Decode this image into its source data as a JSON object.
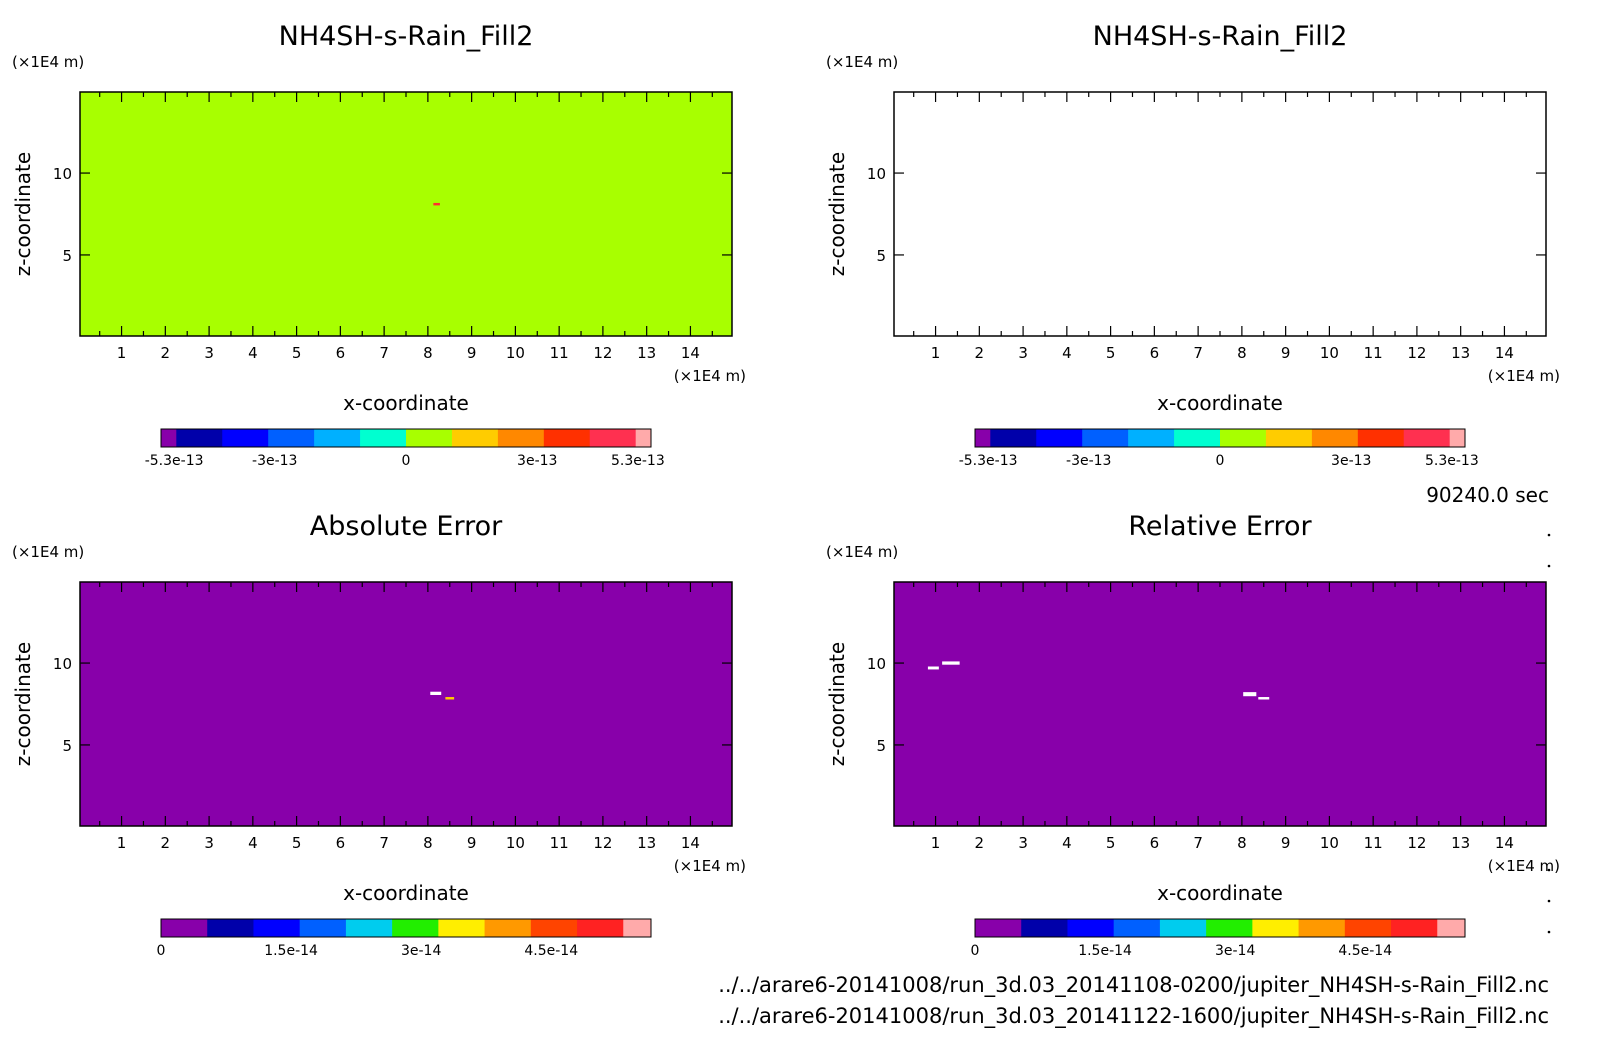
{
  "window": {
    "time_label": "90240.0 sec"
  },
  "files": [
    "../../arare6-20141008/run_3d.03_20141108-0200/jupiter_NH4SH-s-Rain_Fill2.nc",
    "../../arare6-20141008/run_3d.03_20141122-1600/jupiter_NH4SH-s-Rain_Fill2.nc"
  ],
  "chart_data": [
    {
      "type": "heatmap",
      "title": "NH4SH-s-Rain_Fill2",
      "xlabel": "x-coordinate",
      "ylabel": "z-coordinate",
      "x_unit": "(×1E4 m)",
      "y_unit": "(×1E4 m)",
      "xlim": [
        0.05,
        14.95
      ],
      "ylim": [
        0.05,
        14.95
      ],
      "x_ticks": [
        1,
        2,
        3,
        4,
        5,
        6,
        7,
        8,
        9,
        10,
        11,
        12,
        13,
        14
      ],
      "y_ticks": [
        5,
        10
      ],
      "field_color": "#a8ff00",
      "features": [
        {
          "x": 8.2,
          "z": 8.1,
          "w": 0.15,
          "h": 0.15,
          "color": "#ff3030"
        }
      ],
      "colorbar": {
        "colors": [
          "#8800aa",
          "#0000aa",
          "#0000ff",
          "#0060ff",
          "#00b0ff",
          "#00ffd0",
          "#a8ff00",
          "#ffcc00",
          "#ff8800",
          "#ff3000",
          "#ff3050",
          "#ffaaaa"
        ],
        "widths": [
          1,
          3,
          3,
          3,
          3,
          3,
          3,
          3,
          3,
          3,
          3,
          1
        ],
        "range": [
          -5.6e-13,
          5.6e-13
        ],
        "tick_values": [
          -5.3e-13,
          -3e-13,
          0,
          3e-13,
          5.3e-13
        ],
        "tick_labels": [
          "-5.3e-13",
          "-3e-13",
          "0",
          "3e-13",
          "5.3e-13"
        ]
      }
    },
    {
      "type": "heatmap",
      "title": "NH4SH-s-Rain_Fill2",
      "xlabel": "x-coordinate",
      "ylabel": "z-coordinate",
      "x_unit": "(×1E4 m)",
      "y_unit": "(×1E4 m)",
      "xlim": [
        0.05,
        14.95
      ],
      "ylim": [
        0.05,
        14.95
      ],
      "x_ticks": [
        1,
        2,
        3,
        4,
        5,
        6,
        7,
        8,
        9,
        10,
        11,
        12,
        13,
        14
      ],
      "y_ticks": [
        5,
        10
      ],
      "field_color": "#ffffff",
      "features": [],
      "colorbar": {
        "colors": [
          "#8800aa",
          "#0000aa",
          "#0000ff",
          "#0060ff",
          "#00b0ff",
          "#00ffd0",
          "#a8ff00",
          "#ffcc00",
          "#ff8800",
          "#ff3000",
          "#ff3050",
          "#ffaaaa"
        ],
        "widths": [
          1,
          3,
          3,
          3,
          3,
          3,
          3,
          3,
          3,
          3,
          3,
          1
        ],
        "range": [
          -5.6e-13,
          5.6e-13
        ],
        "tick_values": [
          -5.3e-13,
          -3e-13,
          0,
          3e-13,
          5.3e-13
        ],
        "tick_labels": [
          "-5.3e-13",
          "-3e-13",
          "0",
          "3e-13",
          "5.3e-13"
        ]
      }
    },
    {
      "type": "heatmap",
      "title": "Absolute Error",
      "xlabel": "x-coordinate",
      "ylabel": "z-coordinate",
      "x_unit": "(×1E4 m)",
      "y_unit": "(×1E4 m)",
      "xlim": [
        0.05,
        14.95
      ],
      "ylim": [
        0.05,
        14.95
      ],
      "x_ticks": [
        1,
        2,
        3,
        4,
        5,
        6,
        7,
        8,
        9,
        10,
        11,
        12,
        13,
        14
      ],
      "y_ticks": [
        5,
        10
      ],
      "field_color": "#8800aa",
      "features": [
        {
          "x": 8.18,
          "z": 8.15,
          "w": 0.25,
          "h": 0.2,
          "color": "#ffffff"
        },
        {
          "x": 8.5,
          "z": 7.85,
          "w": 0.2,
          "h": 0.15,
          "color": "#ffcc00"
        }
      ],
      "colorbar": {
        "colors": [
          "#8800aa",
          "#0000aa",
          "#0000ff",
          "#0060ff",
          "#00ccee",
          "#22ee00",
          "#ffee00",
          "#ff9900",
          "#ff4400",
          "#ff2222",
          "#ffaaaa"
        ],
        "widths": [
          1,
          1,
          1,
          1,
          1,
          1,
          1,
          1,
          1,
          1,
          0.6
        ],
        "range": [
          0,
          5.65e-14
        ],
        "tick_values": [
          0,
          1.5e-14,
          3e-14,
          4.5e-14
        ],
        "tick_labels": [
          "0",
          "1.5e-14",
          "3e-14",
          "4.5e-14"
        ]
      }
    },
    {
      "type": "heatmap",
      "title": "Relative Error",
      "xlabel": "x-coordinate",
      "ylabel": "z-coordinate",
      "x_unit": "(×1E4 m)",
      "y_unit": "(×1E4 m)",
      "xlim": [
        0.05,
        14.95
      ],
      "ylim": [
        0.05,
        14.95
      ],
      "x_ticks": [
        1,
        2,
        3,
        4,
        5,
        6,
        7,
        8,
        9,
        10,
        11,
        12,
        13,
        14
      ],
      "y_ticks": [
        5,
        10
      ],
      "field_color": "#8800aa",
      "features": [
        {
          "x": 0.95,
          "z": 9.7,
          "w": 0.25,
          "h": 0.18,
          "color": "#ffffff"
        },
        {
          "x": 1.35,
          "z": 10.0,
          "w": 0.4,
          "h": 0.2,
          "color": "#ffffff"
        },
        {
          "x": 8.18,
          "z": 8.1,
          "w": 0.3,
          "h": 0.25,
          "color": "#ffffff"
        },
        {
          "x": 8.5,
          "z": 7.85,
          "w": 0.25,
          "h": 0.15,
          "color": "#ffffff"
        }
      ],
      "colorbar": {
        "colors": [
          "#8800aa",
          "#0000aa",
          "#0000ff",
          "#0060ff",
          "#00ccee",
          "#22ee00",
          "#ffee00",
          "#ff9900",
          "#ff4400",
          "#ff2222",
          "#ffaaaa"
        ],
        "widths": [
          1,
          1,
          1,
          1,
          1,
          1,
          1,
          1,
          1,
          1,
          0.6
        ],
        "range": [
          0,
          5.65e-14
        ],
        "tick_values": [
          0,
          1.5e-14,
          3e-14,
          4.5e-14
        ],
        "tick_labels": [
          "0",
          "1.5e-14",
          "3e-14",
          "4.5e-14"
        ]
      }
    }
  ]
}
